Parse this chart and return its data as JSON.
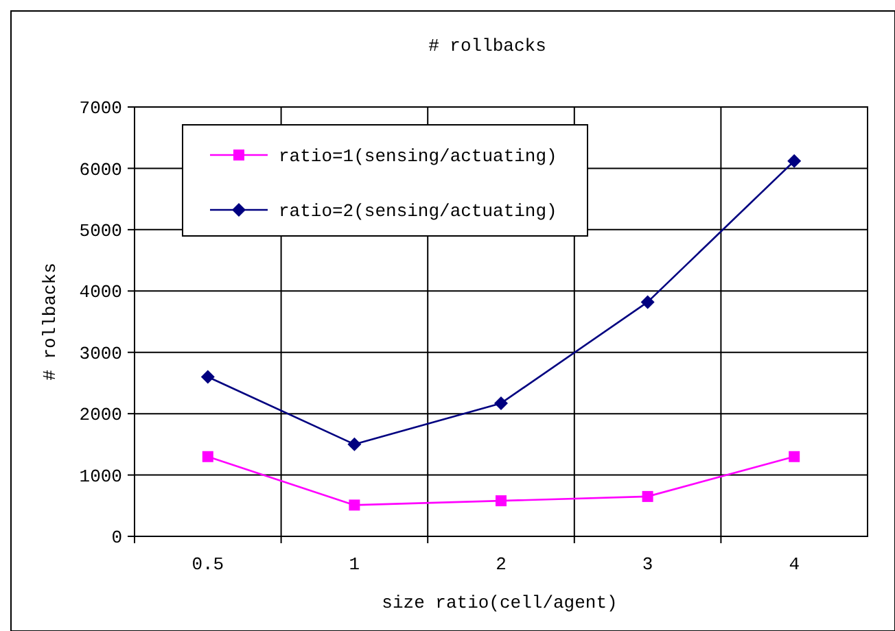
{
  "chart_data": {
    "type": "line",
    "title": "# rollbacks",
    "xlabel": "size ratio(cell/agent)",
    "ylabel": "# rollbacks",
    "categories": [
      "0.5",
      "1",
      "2",
      "3",
      "4"
    ],
    "series": [
      {
        "name": "ratio=1(sensing/actuating)",
        "color": "#ff00ff",
        "marker": "square",
        "values": [
          1300,
          510,
          580,
          650,
          1300
        ]
      },
      {
        "name": "ratio=2(sensing/actuating)",
        "color": "#000080",
        "marker": "diamond",
        "values": [
          2600,
          1500,
          2170,
          3820,
          6120
        ]
      }
    ],
    "ylim": [
      0,
      7000
    ],
    "yticks": [
      0,
      1000,
      2000,
      3000,
      4000,
      5000,
      6000,
      7000
    ],
    "grid": true,
    "legend": "top left"
  }
}
